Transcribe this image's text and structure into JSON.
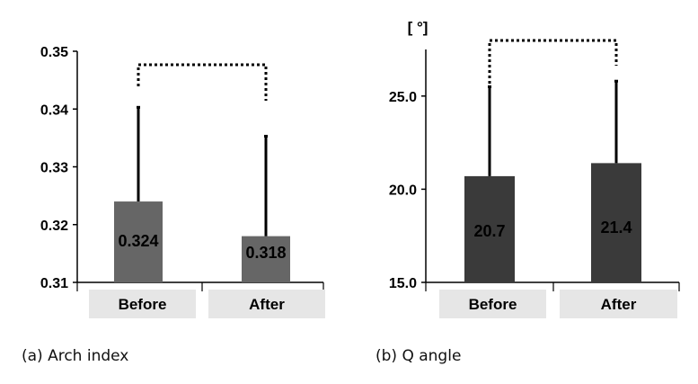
{
  "chart_data": [
    {
      "type": "bar",
      "categories": [
        "Before",
        "After"
      ],
      "values": [
        0.324,
        0.318
      ],
      "value_labels": [
        "0.324",
        "0.318"
      ],
      "error_upper": [
        0.3403,
        0.3353
      ],
      "ylim": [
        0.31,
        0.35
      ],
      "yticks": [
        "0.31",
        "0.32",
        "0.33",
        "0.34",
        "0.35"
      ],
      "ytick_values": [
        0.31,
        0.32,
        0.33,
        0.34,
        0.35
      ],
      "bracket": true,
      "bar_color": "#666666",
      "caption": "(a) Arch index"
    },
    {
      "type": "bar",
      "categories": [
        "Before",
        "After"
      ],
      "values": [
        20.7,
        21.4
      ],
      "value_labels": [
        "20.7",
        "21.4"
      ],
      "error_upper": [
        25.5,
        25.8
      ],
      "ylim": [
        15,
        27.5
      ],
      "yticks": [
        "15.0",
        "20.0",
        "25.0"
      ],
      "ytick_values": [
        15,
        20,
        25
      ],
      "unit": "[ °]",
      "bracket": true,
      "bar_color": "#3a3a3a",
      "caption": "(b) Q angle"
    }
  ]
}
